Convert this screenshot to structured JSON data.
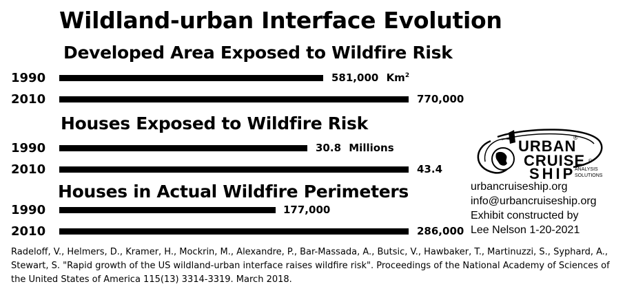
{
  "title": "Wildland-urban Interface Evolution",
  "chart_data": [
    {
      "type": "bar",
      "title": "Developed Area Exposed to Wildfire Risk",
      "categories": [
        "1990",
        "2010"
      ],
      "values": [
        581000,
        770000
      ],
      "value_labels": [
        "581,000",
        "770,000"
      ],
      "unit_label": "Km",
      "unit_superscript": "2"
    },
    {
      "type": "bar",
      "title": "Houses Exposed to Wildfire Risk",
      "categories": [
        "1990",
        "2010"
      ],
      "values": [
        30.8,
        43.4
      ],
      "value_labels": [
        "30.8",
        "43.4"
      ],
      "unit_label": "Millions"
    },
    {
      "type": "bar",
      "title": "Houses in Actual Wildfire Perimeters",
      "categories": [
        "1990",
        "2010"
      ],
      "values": [
        177000,
        286000
      ],
      "value_labels": [
        "177,000",
        "286,000"
      ]
    }
  ],
  "logo": {
    "line1": "URBAN",
    "line2": "CRUISE",
    "line3": "SHIP",
    "tag1": "ANALYSIS",
    "tag2": "SOLUTIONS",
    "registered": "®",
    "copyright": "©"
  },
  "contact": {
    "website": "urbancruiseship.org",
    "email": "info@urbancruiseship.org",
    "credit_line1": "Exhibit constructed by",
    "credit_line2": "Lee Nelson 1-20-2021"
  },
  "citation": "Radeloff, V., Helmers, D., Kramer, H., Mockrin, M., Alexandre, P., Bar-Massada, A., Butsic, V., Hawbaker, T., Martinuzzi, S., Syphard, A., Stewart, S. \"Rapid growth of the US wildland-urban interface raises wildfire risk\". Proceedings of the National Academy of Sciences of the United States of America 115(13) 3314-3319. March 2018."
}
